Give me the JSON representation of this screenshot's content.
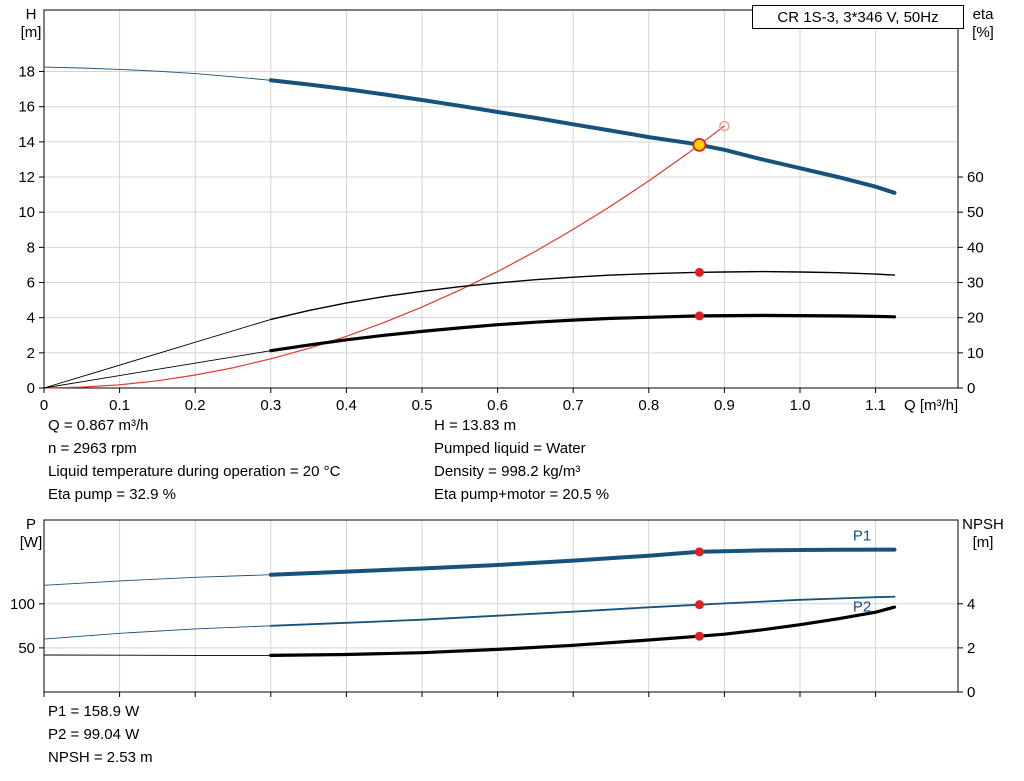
{
  "info": {
    "left": [
      "Q = 0.867 m³/h",
      "n = 2963 rpm",
      "Liquid temperature during operation = 20 °C",
      "Eta pump = 32.9 %"
    ],
    "right": [
      "H = 13.83 m",
      "Pumped liquid = Water",
      "Density = 998.2 kg/m³",
      "Eta pump+motor = 20.5 %"
    ],
    "bottom": [
      "P1 = 158.9 W",
      "P2 = 99.04 W",
      "NPSH = 2.53 m"
    ]
  },
  "chart_data": [
    {
      "type": "line",
      "id": "qh-chart",
      "title": "CR 1S-3, 3*346 V, 50Hz",
      "x_label": "Q [m³/h]",
      "y_left_label": [
        "H",
        "[m]"
      ],
      "y_right_label": [
        "eta",
        "[%]"
      ],
      "xlim": [
        0,
        1.209
      ],
      "ylim_left": [
        0,
        21.5
      ],
      "ylim_right": [
        0,
        107.5
      ],
      "x_ticks": [
        0,
        0.1,
        0.2,
        0.3,
        0.4,
        0.5,
        0.6,
        0.7,
        0.8,
        0.9,
        1.0,
        1.1
      ],
      "y_left_ticks": [
        0,
        2,
        4,
        6,
        8,
        10,
        12,
        14,
        16,
        18
      ],
      "y_right_ticks": [
        0,
        10,
        20,
        30,
        40,
        50,
        60
      ],
      "grid": true,
      "series": [
        {
          "id": "qh-curve",
          "name": "Head curve H(Q)",
          "axis": "left",
          "color": "#17527c",
          "width": 4,
          "thin_until": 0.3,
          "points": [
            [
              0,
              18.25
            ],
            [
              0.05,
              18.2
            ],
            [
              0.1,
              18.12
            ],
            [
              0.15,
              18.02
            ],
            [
              0.2,
              17.88
            ],
            [
              0.25,
              17.7
            ],
            [
              0.3,
              17.5
            ],
            [
              0.35,
              17.26
            ],
            [
              0.4,
              17.0
            ],
            [
              0.45,
              16.7
            ],
            [
              0.5,
              16.38
            ],
            [
              0.55,
              16.05
            ],
            [
              0.6,
              15.7
            ],
            [
              0.65,
              15.36
            ],
            [
              0.7,
              15.0
            ],
            [
              0.75,
              14.64
            ],
            [
              0.8,
              14.27
            ],
            [
              0.85,
              13.95
            ],
            [
              0.867,
              13.83
            ],
            [
              0.9,
              13.55
            ],
            [
              0.95,
              13.0
            ],
            [
              1.0,
              12.5
            ],
            [
              1.05,
              12.0
            ],
            [
              1.1,
              11.45
            ],
            [
              1.125,
              11.1
            ]
          ]
        },
        {
          "id": "system-curve",
          "name": "System curve",
          "axis": "left",
          "color": "#e0392e",
          "width": 1.2,
          "points": [
            [
              0,
              0
            ],
            [
              0.05,
              0.05
            ],
            [
              0.1,
              0.18
            ],
            [
              0.15,
              0.41
            ],
            [
              0.2,
              0.74
            ],
            [
              0.25,
              1.15
            ],
            [
              0.3,
              1.66
            ],
            [
              0.35,
              2.25
            ],
            [
              0.4,
              2.94
            ],
            [
              0.45,
              3.73
            ],
            [
              0.5,
              4.6
            ],
            [
              0.55,
              5.57
            ],
            [
              0.6,
              6.62
            ],
            [
              0.65,
              7.77
            ],
            [
              0.7,
              9.02
            ],
            [
              0.75,
              10.35
            ],
            [
              0.8,
              11.78
            ],
            [
              0.85,
              13.3
            ],
            [
              0.867,
              13.83
            ],
            [
              0.9,
              14.9
            ]
          ]
        },
        {
          "id": "eta-pump-curve",
          "name": "Eta pump",
          "axis": "right",
          "color": "#000000",
          "width": 1.4,
          "thin_until": 0.3,
          "points": [
            [
              0,
              0
            ],
            [
              0.3,
              19.5
            ],
            [
              0.35,
              22.0
            ],
            [
              0.4,
              24.2
            ],
            [
              0.45,
              26.0
            ],
            [
              0.5,
              27.5
            ],
            [
              0.55,
              28.8
            ],
            [
              0.6,
              29.9
            ],
            [
              0.65,
              30.8
            ],
            [
              0.7,
              31.5
            ],
            [
              0.75,
              32.1
            ],
            [
              0.8,
              32.5
            ],
            [
              0.867,
              32.9
            ],
            [
              0.9,
              33.0
            ],
            [
              0.95,
              33.1
            ],
            [
              1.0,
              33.0
            ],
            [
              1.05,
              32.8
            ],
            [
              1.1,
              32.4
            ],
            [
              1.125,
              32.1
            ]
          ]
        },
        {
          "id": "eta-pump-motor-curve",
          "name": "Eta pump+motor",
          "axis": "right",
          "color": "#000000",
          "width": 3.2,
          "thin_until": 0.3,
          "points": [
            [
              0,
              0
            ],
            [
              0.3,
              10.6
            ],
            [
              0.35,
              12.2
            ],
            [
              0.4,
              13.7
            ],
            [
              0.45,
              15.0
            ],
            [
              0.5,
              16.1
            ],
            [
              0.55,
              17.1
            ],
            [
              0.6,
              18.0
            ],
            [
              0.65,
              18.7
            ],
            [
              0.7,
              19.3
            ],
            [
              0.75,
              19.8
            ],
            [
              0.8,
              20.1
            ],
            [
              0.867,
              20.5
            ],
            [
              0.95,
              20.65
            ],
            [
              1.0,
              20.6
            ],
            [
              1.05,
              20.5
            ],
            [
              1.1,
              20.35
            ],
            [
              1.125,
              20.25
            ]
          ]
        }
      ],
      "markers": [
        {
          "id": "eta-pump-duty-dot",
          "type": "dot",
          "axis": "right",
          "x": 0.867,
          "y": 32.9,
          "color": "#e02020"
        },
        {
          "id": "eta-pump-motor-duty-dot",
          "type": "dot",
          "axis": "right",
          "x": 0.867,
          "y": 20.5,
          "color": "#e02020"
        },
        {
          "id": "rated-point-circle",
          "type": "open",
          "axis": "left",
          "x": 0.9,
          "y": 14.9,
          "color": "#ef9a91"
        },
        {
          "id": "duty-point",
          "type": "duty",
          "axis": "left",
          "x": 0.867,
          "y": 13.83,
          "fill": "#ffd400",
          "stroke": "#e02020"
        }
      ],
      "labels": []
    },
    {
      "type": "line",
      "id": "power-npsh-chart",
      "title": "",
      "x_label": "",
      "y_left_label": [
        "P",
        "[W]"
      ],
      "y_right_label": [
        "NPSH",
        "[m]"
      ],
      "xlim": [
        0,
        1.209
      ],
      "ylim_left": [
        0,
        195
      ],
      "ylim_right": [
        0,
        7.8
      ],
      "x_ticks": [
        0,
        0.1,
        0.2,
        0.3,
        0.4,
        0.5,
        0.6,
        0.7,
        0.8,
        0.9,
        1.0,
        1.1
      ],
      "y_left_ticks": [
        50,
        100
      ],
      "y_right_ticks": [
        0,
        2,
        4
      ],
      "grid": true,
      "series": [
        {
          "id": "p1-curve",
          "name": "P1 input power",
          "axis": "left",
          "color": "#17527c",
          "width": 4,
          "thin_until": 0.3,
          "points": [
            [
              0,
              121
            ],
            [
              0.1,
              126
            ],
            [
              0.2,
              130
            ],
            [
              0.3,
              133
            ],
            [
              0.4,
              136.5
            ],
            [
              0.5,
              140
            ],
            [
              0.6,
              144
            ],
            [
              0.7,
              149
            ],
            [
              0.8,
              154.5
            ],
            [
              0.867,
              158.9
            ],
            [
              0.9,
              159.5
            ],
            [
              0.95,
              160.5
            ],
            [
              1.0,
              161
            ],
            [
              1.05,
              161.3
            ],
            [
              1.125,
              161.4
            ]
          ]
        },
        {
          "id": "p2-curve",
          "name": "P2 shaft power",
          "axis": "left",
          "color": "#17527c",
          "width": 1.8,
          "thin_until": 0.3,
          "points": [
            [
              0,
              60
            ],
            [
              0.1,
              66.5
            ],
            [
              0.2,
              71.5
            ],
            [
              0.3,
              75
            ],
            [
              0.4,
              78.5
            ],
            [
              0.5,
              82
            ],
            [
              0.6,
              86.5
            ],
            [
              0.7,
              91
            ],
            [
              0.8,
              96
            ],
            [
              0.867,
              99
            ],
            [
              0.9,
              100.5
            ],
            [
              0.95,
              102.5
            ],
            [
              1.0,
              104.5
            ],
            [
              1.05,
              106
            ],
            [
              1.1,
              107.5
            ],
            [
              1.125,
              108
            ]
          ]
        },
        {
          "id": "npsh-curve",
          "name": "NPSH",
          "axis": "right",
          "color": "#000000",
          "width": 3.2,
          "thin_until": 0.3,
          "points": [
            [
              0,
              1.68
            ],
            [
              0.1,
              1.67
            ],
            [
              0.2,
              1.66
            ],
            [
              0.3,
              1.66
            ],
            [
              0.4,
              1.7
            ],
            [
              0.5,
              1.78
            ],
            [
              0.6,
              1.93
            ],
            [
              0.7,
              2.12
            ],
            [
              0.8,
              2.36
            ],
            [
              0.867,
              2.53
            ],
            [
              0.9,
              2.62
            ],
            [
              0.95,
              2.82
            ],
            [
              1.0,
              3.05
            ],
            [
              1.05,
              3.32
            ],
            [
              1.1,
              3.62
            ],
            [
              1.125,
              3.85
            ]
          ]
        }
      ],
      "markers": [
        {
          "id": "p1-duty-dot",
          "type": "dot",
          "axis": "left",
          "x": 0.867,
          "y": 158.9,
          "color": "#e02020"
        },
        {
          "id": "p2-duty-dot",
          "type": "dot",
          "axis": "left",
          "x": 0.867,
          "y": 99.04,
          "color": "#e02020"
        },
        {
          "id": "npsh-duty-dot",
          "type": "dot",
          "axis": "right",
          "x": 0.867,
          "y": 2.53,
          "color": "#e02020"
        }
      ],
      "labels": [
        {
          "text": "P1",
          "x": 1.07,
          "y": 172,
          "axis": "left",
          "color": "#17527c"
        },
        {
          "text": "P2",
          "x": 1.07,
          "y": 91,
          "axis": "left",
          "color": "#17527c"
        }
      ]
    }
  ]
}
